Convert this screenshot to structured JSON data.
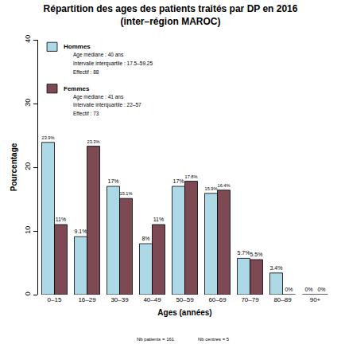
{
  "chart_data": {
    "type": "bar",
    "title": "Répartition des ages des patients traités par DP en 2016\n(inter–région MAROC)",
    "x_label": "Ages (années)",
    "y_label": "Pourcentage",
    "categories": [
      "0–15",
      "16–29",
      "30–39",
      "40–49",
      "50–59",
      "60–69",
      "70–79",
      "80–89",
      "90+"
    ],
    "series": [
      {
        "name": "Hommes",
        "color": "#add8e6",
        "values": [
          23.9,
          9.1,
          17,
          8,
          17,
          15.9,
          5.7,
          3.4,
          0
        ],
        "value_labels": [
          "23.9%",
          "9.1%",
          "17%",
          "8%",
          "17%",
          "15.9%",
          "5.7%",
          "3.4%",
          "0%"
        ],
        "annotations": [
          "Age médiane : 40 ans",
          "Intervalle interquartile : 17.5–59.25",
          "Effectif : 88"
        ]
      },
      {
        "name": "Femmes",
        "color": "#7d4a54",
        "values": [
          11,
          23.3,
          15.1,
          11,
          17.8,
          16.4,
          5.5,
          0,
          0
        ],
        "value_labels": [
          "11%",
          "23.3%",
          "15.1%",
          "11%",
          "17.8%",
          "16.4%",
          "5.5%",
          "0%",
          "0%"
        ],
        "annotations": [
          "Age médiane : 41 ans",
          "Intervalle interquartile : 22–57",
          "Effectif : 73"
        ]
      }
    ],
    "annotations": [
      "Nb patients = 161",
      "Nb centres = 5"
    ],
    "ylim": [
      0,
      40
    ],
    "yticks": [
      0,
      10,
      20,
      30,
      40
    ],
    "grid": false,
    "legend": "top-left",
    "data_labels": true
  }
}
